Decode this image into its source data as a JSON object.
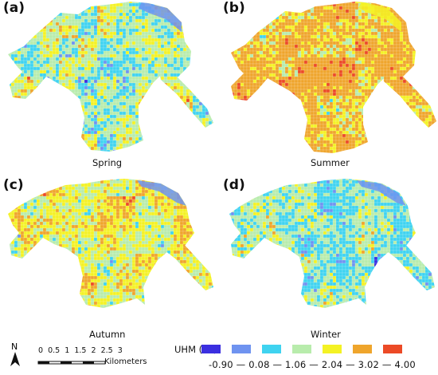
{
  "panels": [
    {
      "label": "(a)",
      "season": "Spring",
      "weights": [
        1,
        10,
        26,
        30,
        22,
        9,
        2
      ]
    },
    {
      "label": "(b)",
      "season": "Summer",
      "weights": [
        0,
        1,
        3,
        14,
        18,
        50,
        14
      ]
    },
    {
      "label": "(c)",
      "season": "Autumn",
      "weights": [
        1,
        3,
        8,
        28,
        28,
        28,
        4
      ]
    },
    {
      "label": "(d)",
      "season": "Winter",
      "weights": [
        2,
        14,
        34,
        30,
        14,
        5,
        1
      ]
    }
  ],
  "legend": {
    "title": "UHM (°C)",
    "colors": [
      "#3b2fe0",
      "#6f93f0",
      "#3fd3f0",
      "#b8ecac",
      "#f4f224",
      "#efa52c",
      "#ec4a26"
    ],
    "values": [
      "-0.90",
      "0.08",
      "1.06",
      "2.04",
      "3.02",
      "4.00"
    ]
  },
  "scale_bar": {
    "ticks": [
      "0",
      "0.5",
      "1",
      "1.5",
      "2",
      "2.5",
      "3"
    ],
    "unit": "Kilometers"
  },
  "north_arrow": {
    "letter": "N"
  }
}
